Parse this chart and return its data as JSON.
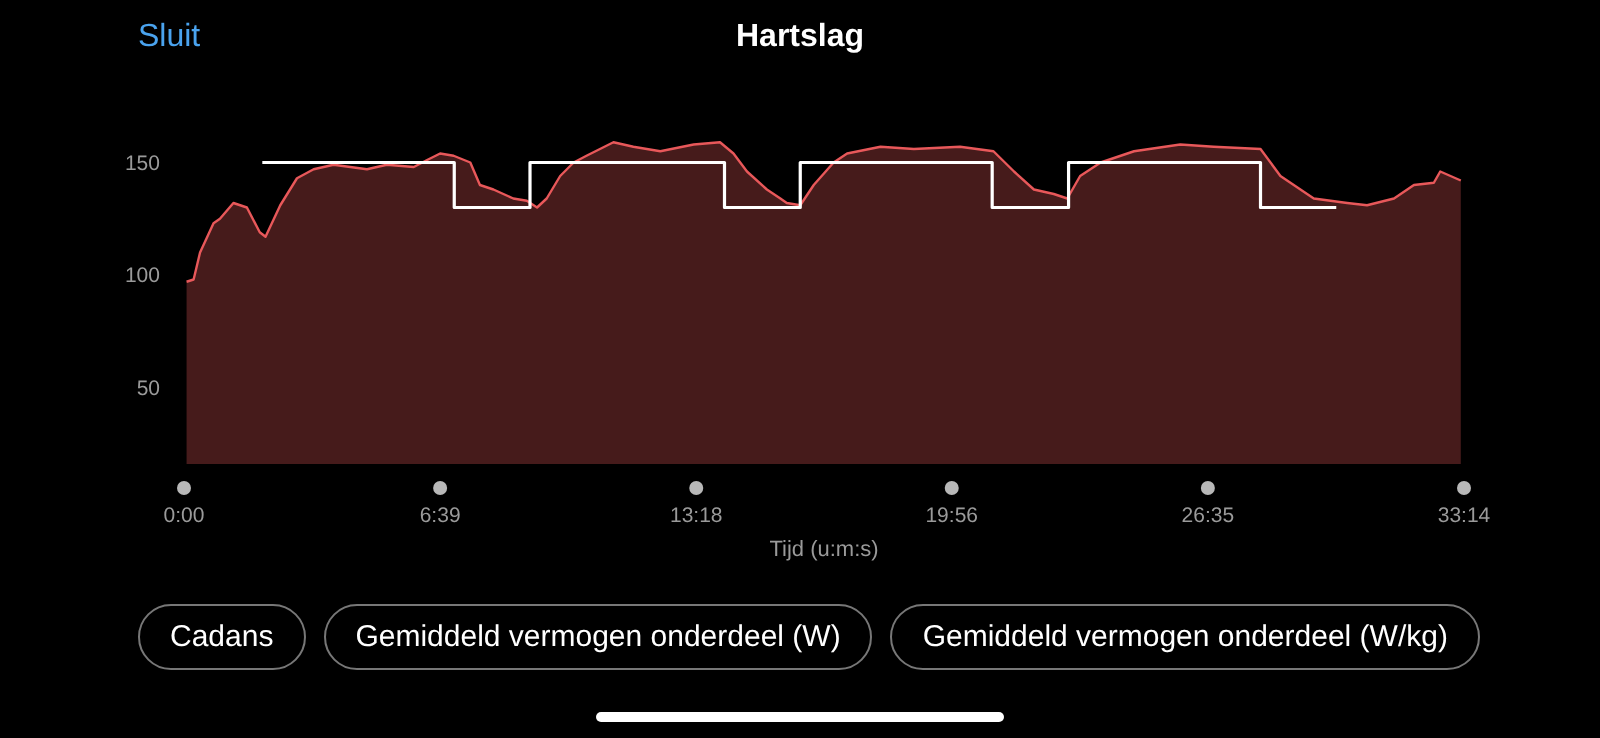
{
  "chart_data": {
    "type": "area",
    "title": "Hartslag",
    "xlabel": "Tijd (u:m:s)",
    "annotations": [
      "Sluit",
      "Cadans",
      "Gemiddeld vermogen onderdeel (W)",
      "Gemiddeld vermogen onderdeel (W/kg)"
    ],
    "xlim": [
      0,
      1994
    ],
    "xticks": [
      {
        "value": 0,
        "label": "0:00"
      },
      {
        "value": 399,
        "label": "6:39"
      },
      {
        "value": 798,
        "label": "13:18"
      },
      {
        "value": 1196,
        "label": "19:56"
      },
      {
        "value": 1595,
        "label": "26:35"
      },
      {
        "value": 1994,
        "label": "33:14"
      }
    ],
    "ylim": [
      16,
      160
    ],
    "yticks": [
      50,
      100,
      150
    ],
    "series": [
      {
        "type": "step",
        "color": "#ffffff",
        "x": [
          122,
          421,
          539,
          842,
          960,
          1259,
          1378,
          1677,
          1795
        ],
        "values": [
          150,
          130,
          150,
          130,
          150,
          130,
          150,
          130,
          130
        ]
      },
      {
        "color": "#e8585a",
        "x": [
          4,
          15,
          25,
          46,
          56,
          77,
          98,
          118,
          127,
          150,
          176,
          202,
          233,
          285,
          316,
          358,
          378,
          399,
          420,
          446,
          461,
          482,
          513,
          534,
          550,
          565,
          586,
          607,
          627,
          669,
          700,
          742,
          794,
          835,
          856,
          877,
          908,
          929,
          939,
          960,
          981,
          1012,
          1033,
          1085,
          1137,
          1209,
          1261,
          1293,
          1324,
          1355,
          1376,
          1396,
          1428,
          1480,
          1552,
          1604,
          1677,
          1708,
          1760,
          1812,
          1843,
          1885,
          1916,
          1947,
          1957,
          1989
        ],
        "values": [
          97,
          98,
          110,
          123,
          125,
          132,
          130,
          119,
          117,
          131,
          143,
          147,
          149,
          147,
          149,
          148,
          151,
          154,
          153,
          150,
          140,
          138,
          134,
          133,
          130,
          134,
          144,
          150,
          153,
          159,
          157,
          155,
          158,
          159,
          154,
          146,
          138,
          134,
          132,
          131,
          140,
          150,
          154,
          157,
          156,
          157,
          155,
          146,
          138,
          136,
          134,
          144,
          150,
          155,
          158,
          157,
          156,
          144,
          134,
          132,
          131,
          134,
          140,
          141,
          146,
          142
        ]
      }
    ]
  }
}
